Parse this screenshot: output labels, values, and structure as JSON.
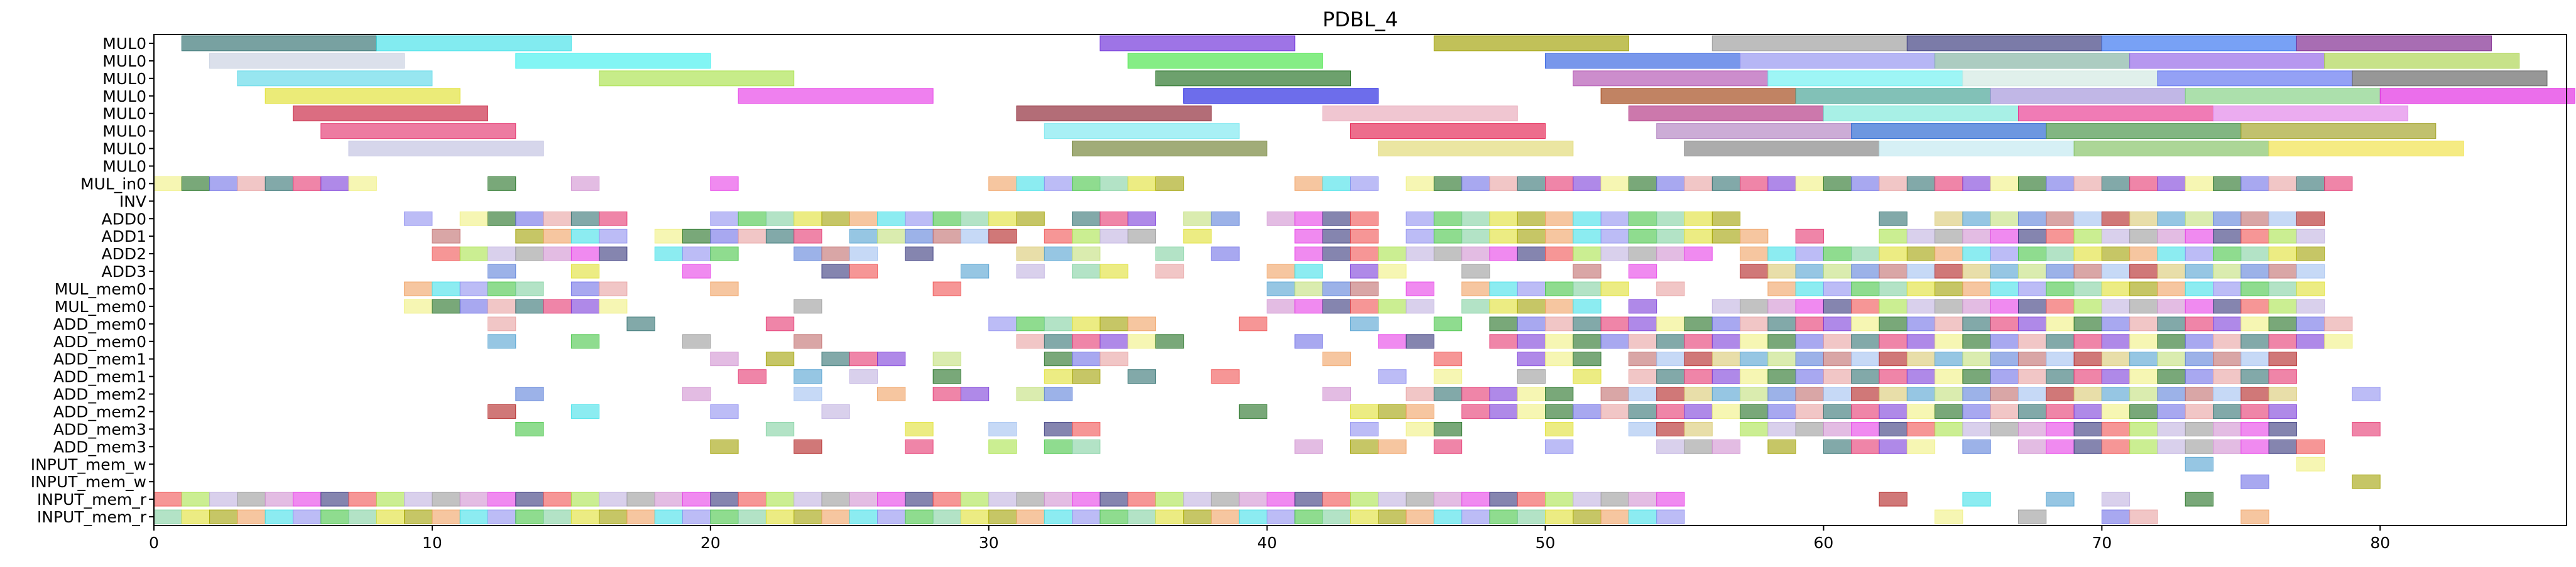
{
  "chart_data": {
    "type": "gantt",
    "title": "PDBL_4",
    "xlabel": "",
    "ylabel": "",
    "xlim": [
      0,
      86.7
    ],
    "x_ticks": [
      0,
      10,
      20,
      30,
      40,
      50,
      60,
      70,
      80
    ],
    "grid": false,
    "rows": [
      "MUL0",
      "MUL0",
      "MUL0",
      "MUL0",
      "MUL0",
      "MUL0",
      "MUL0",
      "MUL0",
      "MUL_in0",
      "INV",
      "ADD0",
      "ADD1",
      "ADD2",
      "ADD3",
      "MUL_mem0",
      "MUL_mem0",
      "ADD_mem0",
      "ADD_mem0",
      "ADD_mem1",
      "ADD_mem1",
      "ADD_mem2",
      "ADD_mem2",
      "ADD_mem3",
      "ADD_mem3",
      "INPUT_mem_w",
      "INPUT_mem_w",
      "INPUT_mem_r",
      "INPUT_mem_r"
    ],
    "palette": [
      "#2f6f6f",
      "#3fe0e8",
      "#a9e24a",
      "#c2e07a",
      "#1f6e1f",
      "#e0e030",
      "#e63ce6",
      "#b01e1e",
      "#e4346e",
      "#8f8ff0",
      "#c0b0e0",
      "#5a7fd8",
      "#6e6ee6",
      "#a0a000",
      "#34347a",
      "#d8c870",
      "#7a3bd8",
      "#44c444",
      "#9a9a9a",
      "#c06a6a",
      "#e8a0a0",
      "#f0a060",
      "#f05050",
      "#50a0d0",
      "#f0f080",
      "#80d0a0",
      "#d090d0",
      "#a0c0f0"
    ],
    "bars": [
      {
        "row": 0,
        "start": 1,
        "end": 8,
        "color": "#2f6f6f"
      },
      {
        "row": 0,
        "start": 8,
        "end": 15,
        "color": "#3fe0e8"
      },
      {
        "row": 0,
        "start": 34,
        "end": 41,
        "color": "#6a2ad8"
      },
      {
        "row": 0,
        "start": 46,
        "end": 53,
        "color": "#a0a000"
      },
      {
        "row": 0,
        "start": 56,
        "end": 63,
        "color": "#9a9a9a"
      },
      {
        "row": 0,
        "start": 63,
        "end": 70,
        "color": "#34347a"
      },
      {
        "row": 0,
        "start": 70,
        "end": 77,
        "color": "#2f6ff0"
      },
      {
        "row": 0,
        "start": 77,
        "end": 84,
        "color": "#7a1e8a"
      },
      {
        "row": 1,
        "start": 2,
        "end": 9,
        "color": "#c8d0e0"
      },
      {
        "row": 1,
        "start": 13,
        "end": 20,
        "color": "#3ff0ee"
      },
      {
        "row": 1,
        "start": 35,
        "end": 42,
        "color": "#44e444"
      },
      {
        "row": 1,
        "start": 50,
        "end": 57,
        "color": "#2f5fe0"
      },
      {
        "row": 1,
        "start": 57,
        "end": 64,
        "color": "#8f8ff0"
      },
      {
        "row": 1,
        "start": 64,
        "end": 71,
        "color": "#80b0a0"
      },
      {
        "row": 1,
        "start": 71,
        "end": 78,
        "color": "#8f60e6"
      },
      {
        "row": 1,
        "start": 78,
        "end": 85,
        "color": "#a9d24a"
      },
      {
        "row": 2,
        "start": 3,
        "end": 10,
        "color": "#5fd8e8"
      },
      {
        "row": 2,
        "start": 16,
        "end": 23,
        "color": "#a9e24a"
      },
      {
        "row": 2,
        "start": 36,
        "end": 43,
        "color": "#1f6e1f"
      },
      {
        "row": 2,
        "start": 51,
        "end": 58,
        "color": "#b050b0"
      },
      {
        "row": 2,
        "start": 58,
        "end": 65,
        "color": "#6af0f0"
      },
      {
        "row": 2,
        "start": 65,
        "end": 72,
        "color": "#d0e8e0"
      },
      {
        "row": 2,
        "start": 72,
        "end": 79,
        "color": "#5a6ff0"
      },
      {
        "row": 2,
        "start": 79,
        "end": 86,
        "color": "#606060"
      },
      {
        "row": 3,
        "start": 4,
        "end": 11,
        "color": "#e0e030"
      },
      {
        "row": 3,
        "start": 21,
        "end": 28,
        "color": "#e63ce6"
      },
      {
        "row": 3,
        "start": 37,
        "end": 44,
        "color": "#1f1fe0"
      },
      {
        "row": 3,
        "start": 52,
        "end": 59,
        "color": "#a04010"
      },
      {
        "row": 3,
        "start": 59,
        "end": 66,
        "color": "#3fa090"
      },
      {
        "row": 3,
        "start": 66,
        "end": 73,
        "color": "#a090d8"
      },
      {
        "row": 3,
        "start": 73,
        "end": 80,
        "color": "#80d080"
      },
      {
        "row": 3,
        "start": 80,
        "end": 87,
        "color": "#e020e0"
      },
      {
        "row": 4,
        "start": 5,
        "end": 12,
        "color": "#c81e3e"
      },
      {
        "row": 4,
        "start": 31,
        "end": 38,
        "color": "#8a1e2e"
      },
      {
        "row": 4,
        "start": 42,
        "end": 49,
        "color": "#e8a8b8"
      },
      {
        "row": 4,
        "start": 53,
        "end": 60,
        "color": "#b03080"
      },
      {
        "row": 4,
        "start": 60,
        "end": 67,
        "color": "#7ae8d8"
      },
      {
        "row": 4,
        "start": 67,
        "end": 74,
        "color": "#e8348e"
      },
      {
        "row": 4,
        "start": 74,
        "end": 81,
        "color": "#e080e8"
      },
      {
        "row": 5,
        "start": 6,
        "end": 13,
        "color": "#e4346e"
      },
      {
        "row": 5,
        "start": 32,
        "end": 39,
        "color": "#7ae8f0"
      },
      {
        "row": 5,
        "start": 43,
        "end": 50,
        "color": "#e41e4e"
      },
      {
        "row": 5,
        "start": 54,
        "end": 61,
        "color": "#b080c0"
      },
      {
        "row": 5,
        "start": 61,
        "end": 68,
        "color": "#1f60d0"
      },
      {
        "row": 5,
        "start": 68,
        "end": 75,
        "color": "#3f8f3f"
      },
      {
        "row": 5,
        "start": 75,
        "end": 82,
        "color": "#a0a020"
      },
      {
        "row": 6,
        "start": 7,
        "end": 14,
        "color": "#c0c0e0"
      },
      {
        "row": 6,
        "start": 33,
        "end": 40,
        "color": "#6f7f30"
      },
      {
        "row": 6,
        "start": 44,
        "end": 51,
        "color": "#e0d870"
      },
      {
        "row": 6,
        "start": 55,
        "end": 62,
        "color": "#808080"
      },
      {
        "row": 6,
        "start": 62,
        "end": 69,
        "color": "#c0e8f0"
      },
      {
        "row": 6,
        "start": 69,
        "end": 76,
        "color": "#80c060"
      },
      {
        "row": 6,
        "start": 76,
        "end": 83,
        "color": "#f0e040"
      }
    ],
    "cells": {
      "8": [
        0,
        1,
        2,
        3,
        4,
        5,
        6,
        7,
        12,
        15,
        20,
        30,
        31,
        32,
        33,
        34,
        35,
        36,
        41,
        42,
        43,
        45,
        46,
        47,
        48,
        49,
        50,
        51,
        52,
        53,
        54,
        55,
        56,
        57,
        58,
        59,
        60,
        61,
        62,
        63,
        64,
        65,
        66,
        67,
        68,
        69,
        70,
        71,
        72,
        73,
        74,
        75,
        76,
        77,
        78
      ],
      "10": [
        9,
        11,
        12,
        13,
        14,
        15,
        16,
        20,
        21,
        22,
        23,
        24,
        25,
        26,
        27,
        28,
        29,
        30,
        31,
        33,
        34,
        35,
        37,
        38,
        40,
        41,
        42,
        43,
        45,
        46,
        47,
        48,
        49,
        50,
        51,
        52,
        53,
        54,
        55,
        56,
        62,
        64,
        65,
        66,
        67,
        68,
        69,
        70,
        71,
        72,
        73,
        74,
        75,
        76,
        77
      ],
      "11": [
        10,
        13,
        14,
        15,
        16,
        18,
        19,
        20,
        21,
        22,
        23,
        25,
        26,
        27,
        28,
        29,
        30,
        32,
        33,
        34,
        35,
        37,
        41,
        42,
        43,
        45,
        46,
        47,
        48,
        49,
        50,
        51,
        52,
        53,
        54,
        55,
        56,
        57,
        59,
        62,
        63,
        64,
        65,
        66,
        67,
        68,
        69,
        70,
        71,
        72,
        73,
        74,
        75,
        76,
        77
      ],
      "12": [
        10,
        11,
        12,
        13,
        14,
        15,
        16,
        18,
        19,
        20,
        23,
        24,
        25,
        27,
        31,
        32,
        33,
        36,
        38,
        41,
        42,
        43,
        44,
        45,
        46,
        47,
        48,
        49,
        50,
        51,
        52,
        53,
        54,
        55,
        57,
        58,
        59,
        60,
        61,
        62,
        63,
        64,
        65,
        66,
        67,
        68,
        69,
        70,
        71,
        72,
        73,
        74,
        75,
        76,
        77
      ],
      "13": [
        12,
        15,
        19,
        24,
        25,
        29,
        31,
        33,
        34,
        36,
        40,
        41,
        43,
        44,
        47,
        51,
        53,
        57,
        58,
        59,
        60,
        61,
        62,
        63,
        64,
        65,
        66,
        67,
        68,
        69,
        70,
        71,
        72,
        73,
        74,
        75,
        76,
        77
      ],
      "14": [
        9,
        10,
        11,
        12,
        13,
        15,
        16,
        20,
        28,
        40,
        41,
        42,
        43,
        45,
        47,
        48,
        49,
        50,
        51,
        52,
        54,
        58,
        59,
        60,
        61,
        62,
        63,
        64,
        65,
        66,
        67,
        68,
        69,
        70,
        71,
        72,
        73,
        74,
        75,
        76,
        77
      ],
      "15": [
        9,
        10,
        11,
        12,
        13,
        14,
        15,
        16,
        23,
        40,
        41,
        42,
        43,
        44,
        45,
        47,
        48,
        49,
        50,
        51,
        53,
        56,
        57,
        58,
        59,
        60,
        61,
        62,
        63,
        64,
        65,
        66,
        67,
        68,
        69,
        70,
        71,
        72,
        73,
        74,
        75,
        76,
        77
      ],
      "16": [
        12,
        17,
        22,
        30,
        31,
        32,
        33,
        34,
        35,
        39,
        43,
        46,
        48,
        49,
        50,
        51,
        52,
        53,
        54,
        55,
        56,
        57,
        58,
        59,
        60,
        61,
        62,
        63,
        64,
        65,
        66,
        67,
        68,
        69,
        70,
        71,
        72,
        73,
        74,
        75,
        76,
        77,
        78
      ],
      "17": [
        12,
        15,
        19,
        23,
        31,
        32,
        33,
        34,
        35,
        36,
        41,
        44,
        45,
        48,
        49,
        50,
        51,
        52,
        53,
        54,
        55,
        56,
        57,
        58,
        59,
        60,
        61,
        62,
        63,
        64,
        65,
        66,
        67,
        68,
        69,
        70,
        71,
        72,
        73,
        74,
        75,
        76,
        77,
        78
      ],
      "18": [
        20,
        22,
        24,
        25,
        26,
        28,
        32,
        33,
        34,
        42,
        46,
        49,
        50,
        51,
        53,
        54,
        55,
        56,
        57,
        58,
        59,
        60,
        61,
        62,
        63,
        64,
        65,
        66,
        67,
        68,
        69,
        70,
        71,
        72,
        73,
        74,
        75,
        76
      ],
      "19": [
        21,
        23,
        25,
        28,
        32,
        33,
        35,
        38,
        44,
        46,
        49,
        51,
        53,
        54,
        55,
        56,
        57,
        58,
        59,
        60,
        61,
        62,
        63,
        64,
        65,
        66,
        67,
        68,
        69,
        70,
        71,
        72,
        73,
        74,
        75,
        76
      ],
      "20": [
        13,
        19,
        23,
        26,
        28,
        29,
        31,
        32,
        42,
        45,
        46,
        47,
        48,
        49,
        50,
        52,
        53,
        54,
        55,
        56,
        57,
        58,
        59,
        60,
        61,
        62,
        63,
        64,
        65,
        66,
        67,
        68,
        69,
        70,
        71,
        72,
        73,
        74,
        75,
        76,
        79
      ],
      "21": [
        12,
        15,
        20,
        24,
        39,
        43,
        44,
        45,
        47,
        48,
        49,
        50,
        51,
        52,
        53,
        54,
        55,
        56,
        57,
        58,
        59,
        60,
        61,
        62,
        63,
        64,
        65,
        66,
        67,
        68,
        69,
        70,
        71,
        72,
        73,
        74,
        75,
        76
      ],
      "22": [
        13,
        22,
        27,
        30,
        32,
        33,
        43,
        45,
        46,
        50,
        53,
        54,
        55,
        57,
        58,
        59,
        60,
        61,
        62,
        63,
        64,
        65,
        66,
        67,
        68,
        69,
        70,
        71,
        72,
        73,
        74,
        75,
        76,
        79
      ],
      "23": [
        20,
        23,
        27,
        30,
        32,
        33,
        41,
        43,
        44,
        46,
        50,
        54,
        55,
        56,
        58,
        60,
        61,
        62,
        63,
        65,
        67,
        68,
        69,
        70,
        71,
        72,
        73,
        74,
        75,
        76,
        77
      ],
      "24": [
        73,
        77
      ],
      "25": [
        75,
        79
      ],
      "26": [
        0,
        1,
        2,
        3,
        4,
        5,
        6,
        7,
        8,
        9,
        10,
        11,
        12,
        13,
        14,
        15,
        16,
        17,
        18,
        19,
        20,
        21,
        22,
        23,
        24,
        25,
        26,
        27,
        28,
        29,
        30,
        31,
        32,
        33,
        34,
        35,
        36,
        37,
        38,
        39,
        40,
        41,
        42,
        43,
        44,
        45,
        46,
        47,
        48,
        49,
        50,
        51,
        52,
        53,
        54,
        62,
        65,
        68,
        70,
        73
      ],
      "27": [
        0,
        1,
        2,
        3,
        4,
        5,
        6,
        7,
        8,
        9,
        10,
        11,
        12,
        13,
        14,
        15,
        16,
        17,
        18,
        19,
        20,
        21,
        22,
        23,
        24,
        25,
        26,
        27,
        28,
        29,
        30,
        31,
        32,
        33,
        34,
        35,
        36,
        37,
        38,
        39,
        40,
        41,
        42,
        43,
        44,
        45,
        46,
        47,
        48,
        49,
        50,
        51,
        52,
        53,
        54,
        64,
        67,
        70,
        71,
        75
      ]
    }
  }
}
